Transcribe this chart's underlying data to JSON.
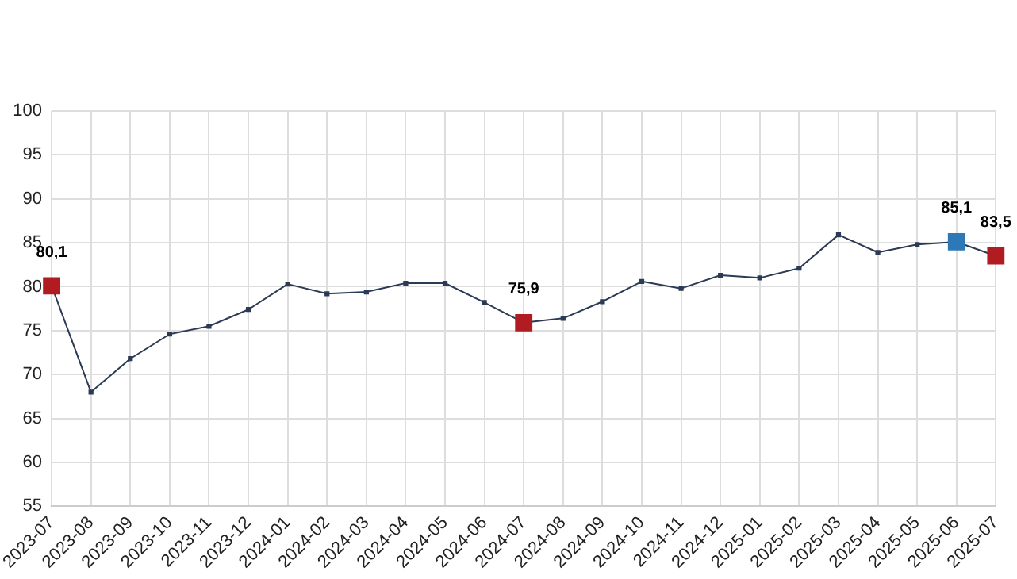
{
  "chart_data": {
    "type": "line",
    "categories": [
      "2023-07",
      "2023-08",
      "2023-09",
      "2023-10",
      "2023-11",
      "2023-12",
      "2024-01",
      "2024-02",
      "2024-03",
      "2024-04",
      "2024-05",
      "2024-06",
      "2024-07",
      "2024-08",
      "2024-09",
      "2024-10",
      "2024-11",
      "2024-12",
      "2025-01",
      "2025-02",
      "2025-03",
      "2025-04",
      "2025-05",
      "2025-06",
      "2025-07"
    ],
    "series": [
      {
        "color": "#2b3a55",
        "values": [
          80.1,
          68.0,
          71.8,
          74.6,
          75.5,
          77.4,
          80.3,
          79.2,
          79.4,
          80.4,
          80.4,
          78.2,
          75.9,
          76.4,
          78.3,
          80.6,
          79.8,
          81.3,
          81.0,
          82.1,
          85.9,
          83.9,
          84.8,
          85.1,
          83.5
        ],
        "colors": [
          "#b01c22",
          null,
          null,
          null,
          null,
          null,
          null,
          null,
          null,
          null,
          null,
          null,
          "#b01c22",
          null,
          null,
          null,
          null,
          null,
          null,
          null,
          null,
          null,
          null,
          "#2f78b8",
          "#b01c22"
        ],
        "value_labels": [
          "80,1",
          null,
          null,
          null,
          null,
          null,
          null,
          null,
          null,
          null,
          null,
          null,
          "75,9",
          null,
          null,
          null,
          null,
          null,
          null,
          null,
          null,
          null,
          null,
          "85,1",
          "83,5"
        ]
      }
    ],
    "ylim": [
      55,
      100
    ],
    "yticks": [
      55,
      60,
      65,
      70,
      75,
      80,
      85,
      90,
      95,
      100
    ],
    "grid": true,
    "legend": false,
    "marker": "square",
    "line_style": "solid"
  }
}
